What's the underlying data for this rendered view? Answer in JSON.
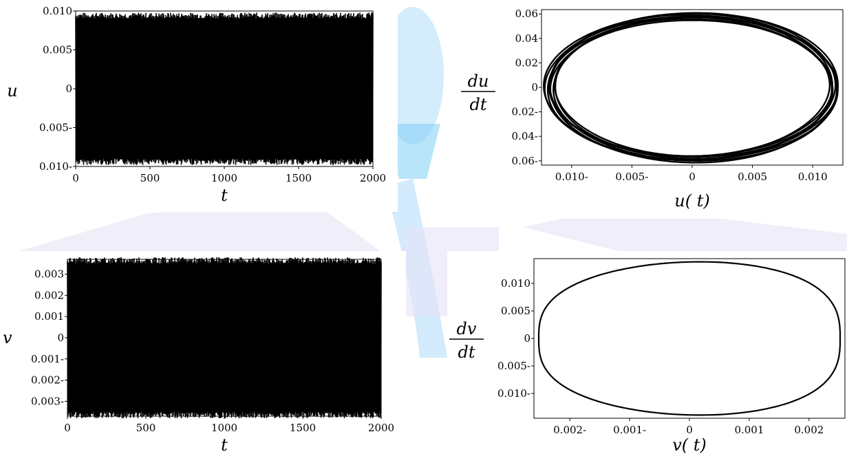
{
  "colors": {
    "ink": "#000000",
    "watermark_blue": "#cfe8fb",
    "watermark_cyan": "#7fd0f5",
    "watermark_violet": "#e3e0f4"
  },
  "chart_data": [
    {
      "id": "u-time",
      "type": "line",
      "xlabel": "t",
      "ylabel": "u",
      "xlim": [
        0,
        2000
      ],
      "ylim": [
        -0.01,
        0.01
      ],
      "xticks": [
        0,
        500,
        1000,
        1500,
        2000
      ],
      "xtick_labels": [
        "0",
        "500",
        "1000",
        "1500",
        "2000"
      ],
      "yticks": [
        0.01,
        0.005,
        0,
        -0.005,
        -0.01
      ],
      "ytick_labels": [
        "0.010",
        "0.005",
        "0",
        "0.005-",
        "0.010-"
      ],
      "series": [
        {
          "x_range": [
            0,
            2000
          ],
          "amplitude": 0.0098,
          "style": "dense oscillation"
        }
      ]
    },
    {
      "id": "u-phase",
      "type": "line",
      "xlabel": "u( t)",
      "ylabel_num": "du",
      "ylabel_den": "dt",
      "xlim": [
        -0.0125,
        0.0125
      ],
      "ylim": [
        -0.0635,
        0.0635
      ],
      "xticks": [
        -0.01,
        -0.005,
        0,
        0.005,
        0.01
      ],
      "xtick_labels": [
        "0.010-",
        "0.005-",
        "0",
        "0.005",
        "0.010"
      ],
      "yticks": [
        0.06,
        0.04,
        0.02,
        0,
        -0.02,
        -0.04,
        -0.06
      ],
      "ytick_labels": [
        "0.06",
        "0.04",
        "0.02",
        "0",
        "0.02-",
        "0.04-",
        "0.06-"
      ],
      "series": [
        {
          "center": [
            0,
            0
          ],
          "u_amplitude": [
            0.0114,
            0.0122
          ],
          "du_amplitude": [
            0.0555,
            0.061
          ],
          "style": "closed orbit band"
        }
      ]
    },
    {
      "id": "v-time",
      "type": "line",
      "xlabel": "t",
      "ylabel": "v",
      "xlim": [
        0,
        2000
      ],
      "ylim": [
        -0.0037,
        0.0037
      ],
      "xticks": [
        0,
        500,
        1000,
        1500,
        2000
      ],
      "xtick_labels": [
        "0",
        "500",
        "1000",
        "1500",
        "2000"
      ],
      "yticks": [
        0.003,
        0.002,
        0.001,
        0,
        -0.001,
        -0.002,
        -0.003
      ],
      "ytick_labels": [
        "0.003",
        "0.002",
        "0.001",
        "0",
        "0.001-",
        "0.002-",
        "0.003-"
      ],
      "series": [
        {
          "x_range": [
            0,
            2000
          ],
          "amplitude": 0.0038,
          "style": "dense oscillation"
        }
      ]
    },
    {
      "id": "v-phase",
      "type": "line",
      "xlabel": "v( t)",
      "ylabel_num": "dv",
      "ylabel_den": "dt",
      "xlim": [
        -0.0026,
        0.0026
      ],
      "ylim": [
        -0.0145,
        0.0145
      ],
      "xticks": [
        -0.002,
        -0.001,
        0,
        0.001,
        0.002
      ],
      "xtick_labels": [
        "0.002-",
        "0.001-",
        "0",
        "0.001",
        "0.002"
      ],
      "yticks": [
        0.01,
        0.005,
        0,
        -0.005,
        -0.01
      ],
      "ytick_labels": [
        "0.010",
        "0.005",
        "0",
        "0.005-",
        "0.010-"
      ],
      "series": [
        {
          "v_amplitude": 0.00252,
          "dv_amplitude": 0.0139,
          "style": "lens-shaped closed orbit"
        }
      ]
    }
  ]
}
